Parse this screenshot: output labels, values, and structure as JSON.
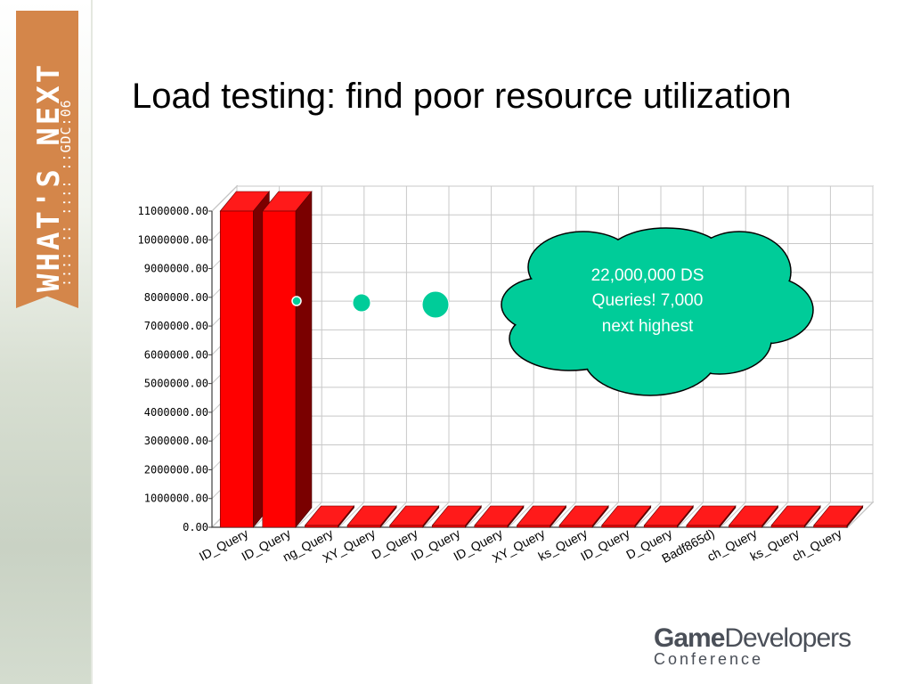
{
  "slide": {
    "title": "Load testing: find poor resource utilization"
  },
  "branding": {
    "banner_text": "WHAT'S NEXT",
    "banner_sub": ":::: :: :::: ::GDC:06",
    "logo_bold": "Game",
    "logo_regular": "Developers",
    "logo_sub": "Conference",
    "banner_color": "#d4864a"
  },
  "callout": {
    "lines": [
      "22,000,000 DS",
      "Queries!  7,000",
      "next highest"
    ],
    "color": "#00cc99"
  },
  "chart_data": {
    "type": "bar",
    "style": "3d",
    "bar_color": "#ff0000",
    "categories": [
      "ID_Query",
      "ID_Query",
      "ng_Query",
      "XY_Query",
      "D_Query",
      "ID_Query",
      "ID_Query",
      "XY_Query",
      "ks_Query",
      "ID_Query",
      "D_Query",
      "Badf865d)",
      "ch_Query",
      "ks_Query",
      "ch_Query"
    ],
    "values": [
      11000000,
      11000000,
      7000,
      5000,
      5000,
      5000,
      5000,
      5000,
      4000,
      4000,
      4000,
      4000,
      4000,
      4000,
      4000
    ],
    "y_ticks": [
      "0.00",
      "1000000.00",
      "2000000.00",
      "3000000.00",
      "4000000.00",
      "5000000.00",
      "6000000.00",
      "7000000.00",
      "8000000.00",
      "9000000.00",
      "10000000.00",
      "11000000.00"
    ],
    "ylim": [
      0,
      11000000
    ],
    "grid": true,
    "xlabel": "",
    "ylabel": "",
    "title": ""
  }
}
